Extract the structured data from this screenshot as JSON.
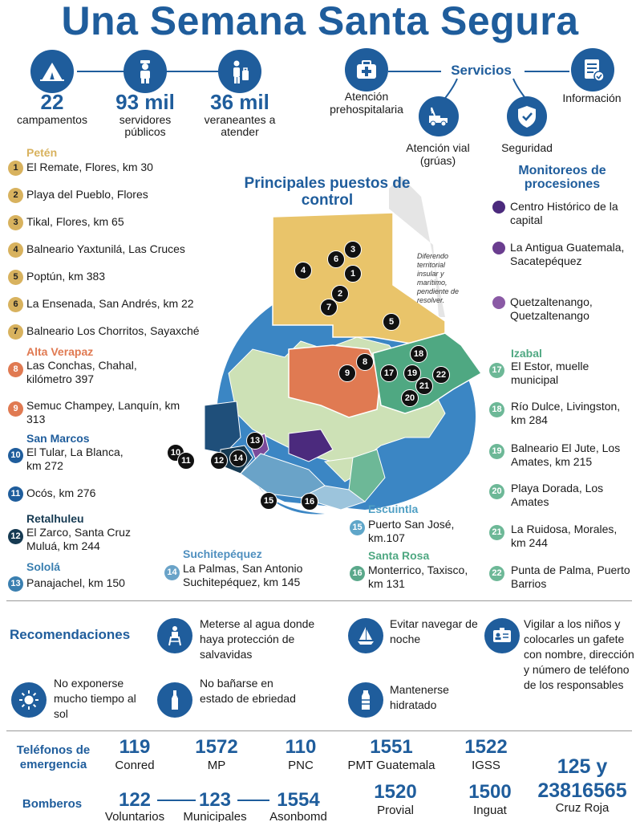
{
  "title": "Una Semana Santa Segura",
  "stats": [
    {
      "value": "22",
      "label": "campamentos",
      "icon": "tent-icon"
    },
    {
      "value": "93 mil",
      "label": "servidores públicos",
      "icon": "officer-icon"
    },
    {
      "value": "36 mil",
      "label": "veraneantes a atender",
      "icon": "tourist-icon"
    }
  ],
  "services": {
    "title": "Servicios",
    "items": [
      {
        "label": "Atención prehospitalaria",
        "icon": "first-aid-icon"
      },
      {
        "label": "Información",
        "icon": "document-check-icon"
      },
      {
        "label": "Atención vial (grúas)",
        "icon": "tow-truck-icon"
      },
      {
        "label": "Seguridad",
        "icon": "shield-check-icon"
      }
    ]
  },
  "map": {
    "title": "Principales puestos de control",
    "note": "Diferendo territorial insular y marítimo, pendiente de resolver."
  },
  "monitoring": {
    "title": "Monitoreos de procesiones",
    "items": [
      {
        "label": "Centro Histórico de la capital",
        "color": "#4b2a7d"
      },
      {
        "label": "La Antigua Guatemala, Sacatepéquez",
        "color": "#6a3d8f"
      },
      {
        "label": "Quetzaltenango, Quetzaltenango",
        "color": "#8a5aa5"
      }
    ]
  },
  "petén": {
    "name": "Petén",
    "color": "#d8b25e",
    "items": [
      {
        "n": "1",
        "label": "El Remate, Flores, km 30"
      },
      {
        "n": "2",
        "label": "Playa del Pueblo, Flores"
      },
      {
        "n": "3",
        "label": "Tikal, Flores, km 65"
      },
      {
        "n": "4",
        "label": "Balneario Yaxtunilá, Las Cruces"
      },
      {
        "n": "5",
        "label": "Poptún, km 383"
      },
      {
        "n": "6",
        "label": "La Ensenada, San Andrés, km 22"
      },
      {
        "n": "7",
        "label": "Balneario Los Chorritos, Sayaxché"
      }
    ]
  },
  "alta_verapaz": {
    "name": "Alta Verapaz",
    "color": "#e07a52",
    "items": [
      {
        "n": "8",
        "label": "Las Conchas, Chahal, kilómetro 397"
      },
      {
        "n": "9",
        "label": "Semuc Champey, Lanquín, km 313"
      }
    ]
  },
  "san_marcos": {
    "name": "San Marcos",
    "color": "#1f5d9c",
    "items": [
      {
        "n": "10",
        "label": "El Tular, La Blanca, km 272"
      },
      {
        "n": "11",
        "label": "Ocós, km 276"
      }
    ]
  },
  "retalhuleu": {
    "name": "Retalhuleu",
    "color": "#163a52",
    "items": [
      {
        "n": "12",
        "label": "El Zarco, Santa Cruz Muluá, km 244"
      }
    ]
  },
  "solola": {
    "name": "Sololá",
    "color": "#3a7fb0",
    "items": [
      {
        "n": "13",
        "label": "Panajachel, km 150"
      }
    ]
  },
  "suchitepequez": {
    "name": "Suchitepéquez",
    "color": "#6aa3c8",
    "items": [
      {
        "n": "14",
        "label": "La Palmas, San Antonio Suchitepéquez, km 145"
      }
    ]
  },
  "escuintla": {
    "name": "Escuintla",
    "color": "#5fa6c9",
    "items": [
      {
        "n": "15",
        "label": "Puerto San José, km.107"
      }
    ]
  },
  "santa_rosa": {
    "name": "Santa Rosa",
    "color": "#5aa88a",
    "items": [
      {
        "n": "16",
        "label": "Monterrico, Taxisco, km 131"
      }
    ]
  },
  "izabal": {
    "name": "Izabal",
    "color": "#6db897",
    "items": [
      {
        "n": "17",
        "label": "El Estor, muelle municipal"
      },
      {
        "n": "18",
        "label": "Río Dulce, Livingston, km 284"
      },
      {
        "n": "19",
        "label": "Balneario El Jute, Los Amates, km 215"
      },
      {
        "n": "20",
        "label": "Playa Dorada, Los Amates"
      },
      {
        "n": "21",
        "label": "La Ruidosa, Morales, km 244"
      },
      {
        "n": "22",
        "label": "Punta de Palma, Puerto Barrios"
      }
    ]
  },
  "recommendations": {
    "title": "Recomendaciones",
    "items": [
      {
        "label": "Meterse al agua donde haya protección de salvavidas",
        "icon": "lifeguard-icon"
      },
      {
        "label": "Evitar navegar de noche",
        "icon": "sailboat-icon"
      },
      {
        "label": "Vigilar a los niños y colocarles un gafete con nombre, dirección y número de teléfono de los responsables",
        "icon": "id-badge-icon"
      },
      {
        "label": "No exponerse mucho tiempo al sol",
        "icon": "sun-icon"
      },
      {
        "label": "No bañarse en estado de ebriedad",
        "icon": "bottle-icon"
      },
      {
        "label": "Mantenerse hidratado",
        "icon": "water-bottle-icon"
      }
    ]
  },
  "phones": {
    "title": "Teléfonos de emergencia",
    "items": [
      {
        "num": "119",
        "label": "Conred"
      },
      {
        "num": "1572",
        "label": "MP"
      },
      {
        "num": "110",
        "label": "PNC"
      },
      {
        "num": "1551",
        "label": "PMT Guatemala"
      },
      {
        "num": "1522",
        "label": "IGSS"
      },
      {
        "num": "125 y 23816565",
        "label": "Cruz Roja"
      },
      {
        "num": "1520",
        "label": "Provial"
      },
      {
        "num": "1500",
        "label": "Inguat"
      }
    ],
    "bomberos": {
      "title": "Bomberos",
      "items": [
        {
          "num": "122",
          "label": "Voluntarios"
        },
        {
          "num": "123",
          "label": "Municipales"
        },
        {
          "num": "1554",
          "label": "Asonbomd"
        }
      ]
    }
  }
}
